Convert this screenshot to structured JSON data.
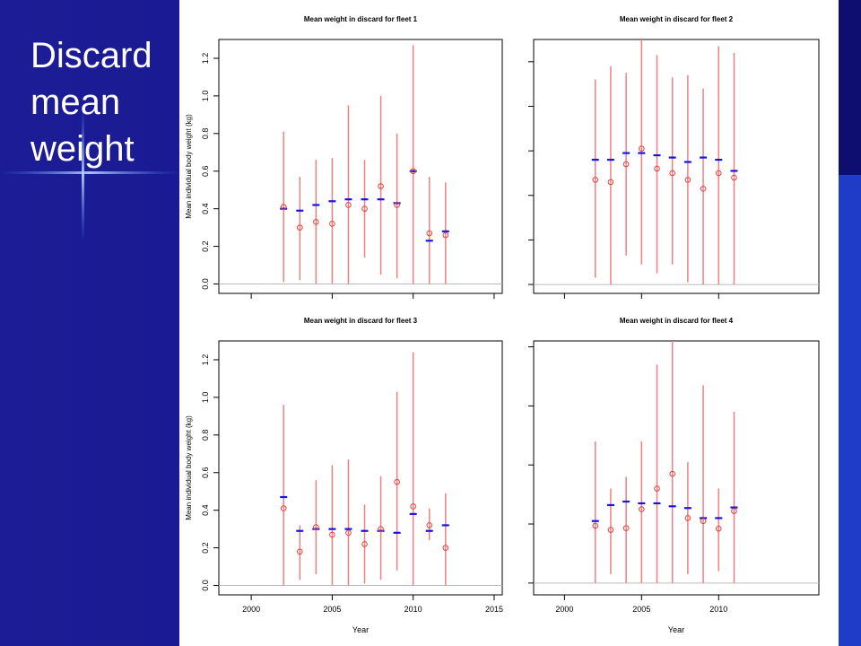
{
  "slide": {
    "title_lines": [
      "Discard",
      "mean",
      "weight"
    ],
    "colors": {
      "background": "#1a1a8c",
      "panel": "#ffffff",
      "range": "#f08080",
      "point": "#e8403c",
      "mean": "#1414e6"
    }
  },
  "chart_data": [
    {
      "type": "scatter",
      "title": "Mean weight in discard for fleet 1",
      "xlabel": "",
      "ylabel": "Mean individual body weight (kg)",
      "xlim": [
        1998,
        2015.5
      ],
      "ylim": [
        -0.05,
        1.3
      ],
      "yticks": [
        "0.0",
        "0.2",
        "0.4",
        "0.6",
        "0.8",
        "1.0",
        "1.2"
      ],
      "ytick_values": [
        0,
        0.2,
        0.4,
        0.6,
        0.8,
        1.0,
        1.2
      ],
      "xticks": [],
      "xtick_values": [
        2000,
        2005,
        2010,
        2015
      ],
      "points": [
        {
          "year": 2002,
          "lower": 0.01,
          "upper": 0.81,
          "mean": 0.4,
          "observed": 0.41
        },
        {
          "year": 2003,
          "lower": 0.02,
          "upper": 0.57,
          "mean": 0.39,
          "observed": 0.3
        },
        {
          "year": 2004,
          "lower": 0.0,
          "upper": 0.66,
          "mean": 0.42,
          "observed": 0.33
        },
        {
          "year": 2005,
          "lower": 0.0,
          "upper": 0.67,
          "mean": 0.44,
          "observed": 0.32
        },
        {
          "year": 2006,
          "lower": 0.0,
          "upper": 0.95,
          "mean": 0.45,
          "observed": 0.42
        },
        {
          "year": 2007,
          "lower": 0.14,
          "upper": 0.66,
          "mean": 0.45,
          "observed": 0.4
        },
        {
          "year": 2008,
          "lower": 0.05,
          "upper": 1.0,
          "mean": 0.45,
          "observed": 0.52
        },
        {
          "year": 2009,
          "lower": 0.03,
          "upper": 0.8,
          "mean": 0.43,
          "observed": 0.42
        },
        {
          "year": 2010,
          "lower": 0.0,
          "upper": 1.27,
          "mean": 0.6,
          "observed": 0.6
        },
        {
          "year": 2011,
          "lower": 0.0,
          "upper": 0.57,
          "mean": 0.23,
          "observed": 0.27
        },
        {
          "year": 2012,
          "lower": 0.0,
          "upper": 0.54,
          "mean": 0.28,
          "observed": 0.26
        }
      ]
    },
    {
      "type": "scatter",
      "title": "Mean weight in discard for fleet 2",
      "xlabel": "",
      "ylabel": "",
      "xlim": [
        1998,
        2016.5
      ],
      "ylim": [
        -0.2,
        5.5
      ],
      "yticks": [],
      "ytick_values": [
        0,
        1,
        2,
        3,
        4,
        5
      ],
      "xticks": [],
      "xtick_values": [
        2000,
        2005,
        2010
      ],
      "points": [
        {
          "year": 2002,
          "lower": 0.15,
          "upper": 4.6,
          "mean": 2.8,
          "observed": 2.35
        },
        {
          "year": 2003,
          "lower": 0.0,
          "upper": 4.9,
          "mean": 2.8,
          "observed": 2.3
        },
        {
          "year": 2004,
          "lower": 0.65,
          "upper": 4.75,
          "mean": 2.95,
          "observed": 2.7
        },
        {
          "year": 2005,
          "lower": 0.45,
          "upper": 5.5,
          "mean": 2.95,
          "observed": 3.05
        },
        {
          "year": 2006,
          "lower": 0.25,
          "upper": 5.15,
          "mean": 2.9,
          "observed": 2.6
        },
        {
          "year": 2007,
          "lower": 0.45,
          "upper": 4.65,
          "mean": 2.85,
          "observed": 2.5
        },
        {
          "year": 2008,
          "lower": 0.05,
          "upper": 4.7,
          "mean": 2.75,
          "observed": 2.35
        },
        {
          "year": 2009,
          "lower": 0.0,
          "upper": 4.4,
          "mean": 2.85,
          "observed": 2.15
        },
        {
          "year": 2010,
          "lower": 0.0,
          "upper": 5.35,
          "mean": 2.8,
          "observed": 2.5
        },
        {
          "year": 2011,
          "lower": 0.0,
          "upper": 5.2,
          "mean": 2.55,
          "observed": 2.4
        }
      ]
    },
    {
      "type": "scatter",
      "title": "Mean weight in discard for fleet 3",
      "xlabel": "Year",
      "ylabel": "Mean individual body weight (kg)",
      "xlim": [
        1998,
        2015.5
      ],
      "ylim": [
        -0.05,
        1.3
      ],
      "yticks": [
        "0.0",
        "0.2",
        "0.4",
        "0.6",
        "0.8",
        "1.0",
        "1.2"
      ],
      "ytick_values": [
        0,
        0.2,
        0.4,
        0.6,
        0.8,
        1.0,
        1.2
      ],
      "xticks": [
        "2000",
        "2005",
        "2010",
        "2015"
      ],
      "xtick_values": [
        2000,
        2005,
        2010,
        2015
      ],
      "points": [
        {
          "year": 2002,
          "lower": 0.0,
          "upper": 0.96,
          "mean": 0.47,
          "observed": 0.41
        },
        {
          "year": 2003,
          "lower": 0.03,
          "upper": 0.32,
          "mean": 0.29,
          "observed": 0.18
        },
        {
          "year": 2004,
          "lower": 0.06,
          "upper": 0.56,
          "mean": 0.3,
          "observed": 0.31
        },
        {
          "year": 2005,
          "lower": 0.0,
          "upper": 0.64,
          "mean": 0.3,
          "observed": 0.27
        },
        {
          "year": 2006,
          "lower": 0.0,
          "upper": 0.67,
          "mean": 0.3,
          "observed": 0.28
        },
        {
          "year": 2007,
          "lower": 0.01,
          "upper": 0.43,
          "mean": 0.29,
          "observed": 0.22
        },
        {
          "year": 2008,
          "lower": 0.03,
          "upper": 0.58,
          "mean": 0.29,
          "observed": 0.3
        },
        {
          "year": 2009,
          "lower": 0.08,
          "upper": 1.03,
          "mean": 0.28,
          "observed": 0.55
        },
        {
          "year": 2010,
          "lower": 0.0,
          "upper": 1.24,
          "mean": 0.38,
          "observed": 0.42
        },
        {
          "year": 2011,
          "lower": 0.24,
          "upper": 0.41,
          "mean": 0.29,
          "observed": 0.32
        },
        {
          "year": 2012,
          "lower": 0.0,
          "upper": 0.49,
          "mean": 0.32,
          "observed": 0.2
        }
      ]
    },
    {
      "type": "scatter",
      "title": "Mean weight in discard for fleet 4",
      "xlabel": "Year",
      "ylabel": "",
      "xlim": [
        1998,
        2016.5
      ],
      "ylim": [
        -0.2,
        4.1
      ],
      "yticks": [],
      "ytick_values": [
        0,
        1,
        2,
        3,
        4
      ],
      "xticks": [
        "2000",
        "2005",
        "2010"
      ],
      "xtick_values": [
        2000,
        2005,
        2010
      ],
      "points": [
        {
          "year": 2002,
          "lower": 0.0,
          "upper": 2.4,
          "mean": 1.05,
          "observed": 0.97
        },
        {
          "year": 2003,
          "lower": 0.15,
          "upper": 1.6,
          "mean": 1.32,
          "observed": 0.9
        },
        {
          "year": 2004,
          "lower": 0.0,
          "upper": 1.8,
          "mean": 1.38,
          "observed": 0.93
        },
        {
          "year": 2005,
          "lower": 0.0,
          "upper": 2.4,
          "mean": 1.35,
          "observed": 1.25
        },
        {
          "year": 2006,
          "lower": 0.0,
          "upper": 3.7,
          "mean": 1.35,
          "observed": 1.6
        },
        {
          "year": 2007,
          "lower": 0.0,
          "upper": 4.2,
          "mean": 1.3,
          "observed": 1.85
        },
        {
          "year": 2008,
          "lower": 0.15,
          "upper": 2.05,
          "mean": 1.27,
          "observed": 1.1
        },
        {
          "year": 2009,
          "lower": 0.0,
          "upper": 3.35,
          "mean": 1.1,
          "observed": 1.05
        },
        {
          "year": 2010,
          "lower": 0.2,
          "upper": 1.6,
          "mean": 1.1,
          "observed": 0.92
        },
        {
          "year": 2011,
          "lower": 0.0,
          "upper": 2.9,
          "mean": 1.28,
          "observed": 1.22
        }
      ]
    }
  ]
}
